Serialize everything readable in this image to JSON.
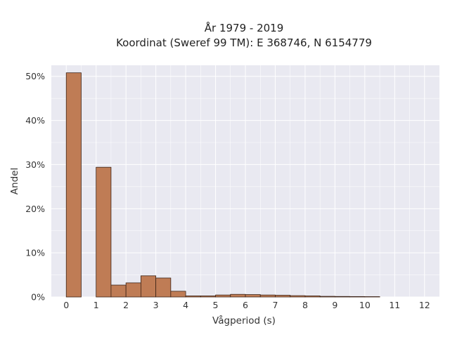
{
  "chart_data": {
    "type": "bar",
    "title": "År 1979 - 2019",
    "subtitle": "Koordinat (Sweref 99 TM): E 368746, N 6154779",
    "xlabel": "Vågperiod (s)",
    "ylabel": "Andel",
    "x_ticks": [
      "0",
      "1",
      "2",
      "3",
      "4",
      "5",
      "6",
      "7",
      "8",
      "9",
      "10",
      "11",
      "12"
    ],
    "y_ticks": [
      "0%",
      "10%",
      "20%",
      "30%",
      "40%",
      "50%"
    ],
    "xlim": [
      -0.5,
      12.5
    ],
    "ylim": [
      0,
      52.5
    ],
    "bin_width": 0.5,
    "bins": [
      {
        "x0": 0.0,
        "value": 50.8
      },
      {
        "x0": 1.0,
        "value": 29.4
      },
      {
        "x0": 1.5,
        "value": 2.7
      },
      {
        "x0": 2.0,
        "value": 3.2
      },
      {
        "x0": 2.5,
        "value": 4.8
      },
      {
        "x0": 3.0,
        "value": 4.3
      },
      {
        "x0": 3.5,
        "value": 1.3
      },
      {
        "x0": 4.0,
        "value": 0.25
      },
      {
        "x0": 4.5,
        "value": 0.25
      },
      {
        "x0": 5.0,
        "value": 0.45
      },
      {
        "x0": 5.5,
        "value": 0.6
      },
      {
        "x0": 6.0,
        "value": 0.55
      },
      {
        "x0": 6.5,
        "value": 0.45
      },
      {
        "x0": 7.0,
        "value": 0.4
      },
      {
        "x0": 7.5,
        "value": 0.3
      },
      {
        "x0": 8.0,
        "value": 0.25
      },
      {
        "x0": 8.5,
        "value": 0.15
      },
      {
        "x0": 9.0,
        "value": 0.12
      },
      {
        "x0": 9.5,
        "value": 0.1
      },
      {
        "x0": 10.0,
        "value": 0.08
      }
    ],
    "grid": true,
    "colors": {
      "bar_fill": "#bf7c55",
      "bar_stroke": "#3d2418",
      "plot_bg": "#e9e9f1",
      "grid": "#ffffff"
    }
  }
}
